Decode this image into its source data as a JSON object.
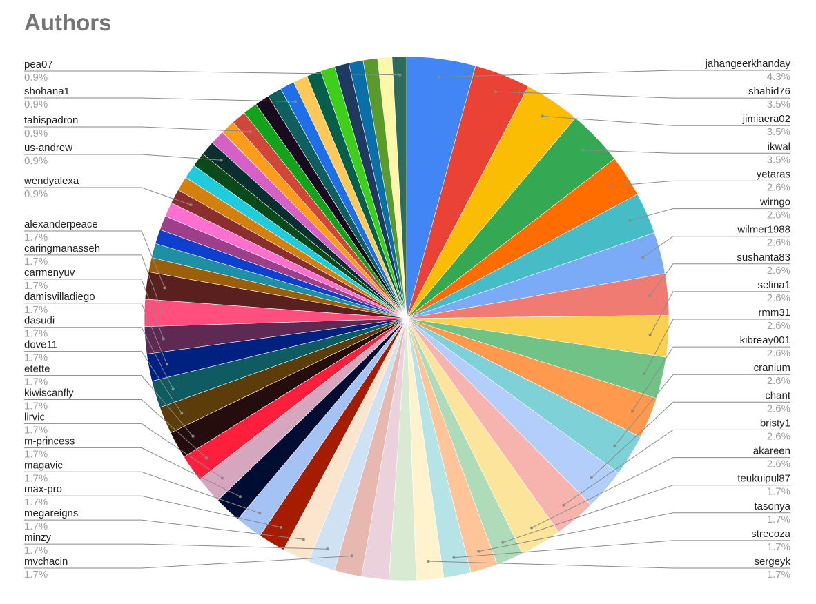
{
  "chart_data": {
    "type": "pie",
    "title": "Authors",
    "legend": "labels-outside",
    "slices": [
      {
        "name": "jahangeerkhanday",
        "value": 4.3,
        "label": "4.3%",
        "color": "#4285f4",
        "side": "right"
      },
      {
        "name": "shahid76",
        "value": 3.5,
        "label": "3.5%",
        "color": "#ea4335",
        "side": "right"
      },
      {
        "name": "jimiaera02",
        "value": 3.5,
        "label": "3.5%",
        "color": "#fbbc04",
        "side": "right"
      },
      {
        "name": "ikwal",
        "value": 3.5,
        "label": "3.5%",
        "color": "#34a853",
        "side": "right"
      },
      {
        "name": "yetaras",
        "value": 2.6,
        "label": "2.6%",
        "color": "#ff6d01",
        "side": "right"
      },
      {
        "name": "wirngo",
        "value": 2.6,
        "label": "2.6%",
        "color": "#46bdc6",
        "side": "right"
      },
      {
        "name": "wilmer1988",
        "value": 2.6,
        "label": "2.6%",
        "color": "#7baaf7",
        "side": "right"
      },
      {
        "name": "sushanta83",
        "value": 2.6,
        "label": "2.6%",
        "color": "#f07b72",
        "side": "right"
      },
      {
        "name": "selina1",
        "value": 2.6,
        "label": "2.6%",
        "color": "#fcd04f",
        "side": "right"
      },
      {
        "name": "rmm31",
        "value": 2.6,
        "label": "2.6%",
        "color": "#71c287",
        "side": "right"
      },
      {
        "name": "kibreay001",
        "value": 2.6,
        "label": "2.6%",
        "color": "#ff994d",
        "side": "right"
      },
      {
        "name": "cranium",
        "value": 2.6,
        "label": "2.6%",
        "color": "#7ed1d7",
        "side": "right"
      },
      {
        "name": "chant",
        "value": 2.6,
        "label": "2.6%",
        "color": "#b3cefb",
        "side": "right"
      },
      {
        "name": "bristy1",
        "value": 2.6,
        "label": "2.6%",
        "color": "#f7b4ae",
        "side": "right"
      },
      {
        "name": "akareen",
        "value": 2.6,
        "label": "2.6%",
        "color": "#fde49b",
        "side": "right"
      },
      {
        "name": "teukuipul87",
        "value": 1.7,
        "label": "1.7%",
        "color": "#aedcba",
        "side": "right"
      },
      {
        "name": "tasonya",
        "value": 1.7,
        "label": "1.7%",
        "color": "#ffc599",
        "side": "right"
      },
      {
        "name": "strecoza",
        "value": 1.7,
        "label": "1.7%",
        "color": "#b5e3e6",
        "side": "right"
      },
      {
        "name": "sergeyk",
        "value": 1.7,
        "label": "1.7%",
        "color": "#fef3cc",
        "side": "right"
      },
      {
        "name": "",
        "value": 1.7,
        "label": "",
        "color": "#d9ead3",
        "side": "none"
      },
      {
        "name": "",
        "value": 1.7,
        "label": "",
        "color": "#ead1dc",
        "side": "none"
      },
      {
        "name": "mvchacin",
        "value": 1.7,
        "label": "1.7%",
        "color": "#e6b8af",
        "side": "left"
      },
      {
        "name": "minzy",
        "value": 1.7,
        "label": "1.7%",
        "color": "#cfe2f3",
        "side": "left"
      },
      {
        "name": "megareigns",
        "value": 1.7,
        "label": "1.7%",
        "color": "#fce5cd",
        "side": "left"
      },
      {
        "name": "max-pro",
        "value": 1.7,
        "label": "1.7%",
        "color": "#a61c00",
        "side": "left"
      },
      {
        "name": "magavic",
        "value": 1.7,
        "label": "1.7%",
        "color": "#a4c2f4",
        "side": "left"
      },
      {
        "name": "m-princess",
        "value": 1.7,
        "label": "1.7%",
        "color": "#000d33",
        "side": "left"
      },
      {
        "name": "lirvic",
        "value": 1.7,
        "label": "1.7%",
        "color": "#d5a6bd",
        "side": "left"
      },
      {
        "name": "kiwiscanfly",
        "value": 1.7,
        "label": "1.7%",
        "color": "#ff1f3d",
        "side": "left"
      },
      {
        "name": "etette",
        "value": 1.7,
        "label": "1.7%",
        "color": "#260d0d",
        "side": "left"
      },
      {
        "name": "dove11",
        "value": 1.7,
        "label": "1.7%",
        "color": "#5c3d0a",
        "side": "left"
      },
      {
        "name": "dasudi",
        "value": 1.7,
        "label": "1.7%",
        "color": "#0e5c61",
        "side": "left"
      },
      {
        "name": "damisvilladiego",
        "value": 1.7,
        "label": "1.7%",
        "color": "#00217f",
        "side": "left"
      },
      {
        "name": "carmenyuv",
        "value": 1.7,
        "label": "1.7%",
        "color": "#5e2952",
        "side": "left"
      },
      {
        "name": "caringmanasseh",
        "value": 1.7,
        "label": "1.7%",
        "color": "#ff4f7f",
        "side": "left"
      },
      {
        "name": "alexanderpeace",
        "value": 1.7,
        "label": "1.7%",
        "color": "#5a1f1f",
        "side": "left"
      },
      {
        "name": "",
        "value": 0.9,
        "label": "",
        "color": "#9a5f0a",
        "side": "none"
      },
      {
        "name": "",
        "value": 0.9,
        "label": "",
        "color": "#1f8fa3",
        "side": "none"
      },
      {
        "name": "",
        "value": 0.9,
        "label": "",
        "color": "#0f3fcf",
        "side": "none"
      },
      {
        "name": "",
        "value": 0.9,
        "label": "",
        "color": "#9d3f8a",
        "side": "none"
      },
      {
        "name": "",
        "value": 0.9,
        "label": "",
        "color": "#ff6fcf",
        "side": "none"
      },
      {
        "name": "wendyalexa",
        "value": 0.9,
        "label": "0.9%",
        "color": "#8a2e2e",
        "side": "left"
      },
      {
        "name": "",
        "value": 0.9,
        "label": "",
        "color": "#d4800f",
        "side": "none"
      },
      {
        "name": "",
        "value": 0.9,
        "label": "",
        "color": "#1fcbdc",
        "side": "none"
      },
      {
        "name": "",
        "value": 0.9,
        "label": "",
        "color": "#0a4a1a",
        "side": "none"
      },
      {
        "name": "us-andrew",
        "value": 0.9,
        "label": "0.9%",
        "color": "#0a2f2f",
        "side": "left"
      },
      {
        "name": "",
        "value": 0.9,
        "label": "",
        "color": "#d65fc8",
        "side": "none"
      },
      {
        "name": "",
        "value": 0.9,
        "label": "",
        "color": "#ff9d1a",
        "side": "none"
      },
      {
        "name": "tahispadron",
        "value": 0.9,
        "label": "0.9%",
        "color": "#d0473a",
        "side": "left"
      },
      {
        "name": "",
        "value": 0.9,
        "label": "",
        "color": "#12a31a",
        "side": "none"
      },
      {
        "name": "",
        "value": 0.9,
        "label": "",
        "color": "#1a0a1f",
        "side": "none"
      },
      {
        "name": "",
        "value": 0.9,
        "label": "",
        "color": "#0f5f5f",
        "side": "none"
      },
      {
        "name": "shohana1",
        "value": 0.9,
        "label": "0.9%",
        "color": "#1f6fe8",
        "side": "left"
      },
      {
        "name": "",
        "value": 0.9,
        "label": "",
        "color": "#ffc857",
        "side": "none"
      },
      {
        "name": "",
        "value": 0.9,
        "label": "",
        "color": "#055f4a",
        "side": "none"
      },
      {
        "name": "",
        "value": 0.9,
        "label": "",
        "color": "#3ecf1a",
        "side": "none"
      },
      {
        "name": "",
        "value": 0.9,
        "label": "",
        "color": "#1f3a5f",
        "side": "none"
      },
      {
        "name": "",
        "value": 0.9,
        "label": "",
        "color": "#0a6fa8",
        "side": "none"
      },
      {
        "name": "",
        "value": 0.9,
        "label": "",
        "color": "#5a9a2a",
        "side": "none"
      },
      {
        "name": "",
        "value": 0.9,
        "label": "",
        "color": "#fff7a8",
        "side": "none"
      },
      {
        "name": "pea07",
        "value": 0.9,
        "label": "0.9%",
        "color": "#2e6b5a",
        "side": "left"
      }
    ]
  }
}
